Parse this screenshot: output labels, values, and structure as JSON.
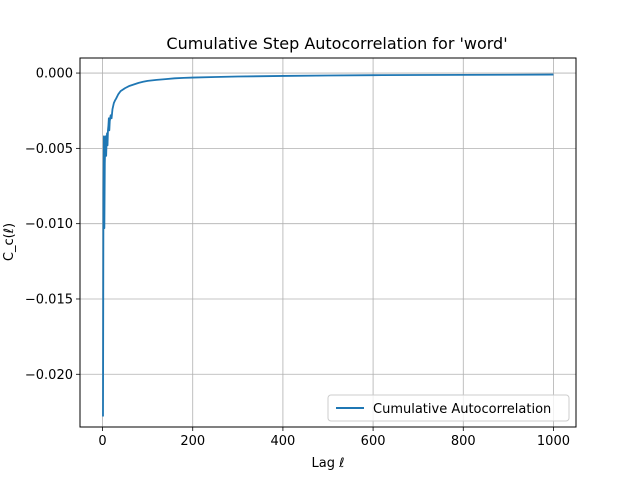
{
  "chart_data": {
    "type": "line",
    "title": "Cumulative Step Autocorrelation for 'word'",
    "xlabel": "Lag ℓ",
    "ylabel": "C_c(ℓ)",
    "xlim": [
      -50,
      1050
    ],
    "ylim": [
      -0.0235,
      0.001
    ],
    "xticks": [
      0,
      200,
      400,
      600,
      800,
      1000
    ],
    "xtick_labels": [
      "0",
      "200",
      "400",
      "600",
      "800",
      "1000"
    ],
    "yticks": [
      0.0,
      -0.005,
      -0.01,
      -0.015,
      -0.02
    ],
    "ytick_labels": [
      "0.000",
      "−0.005",
      "−0.010",
      "−0.015",
      "−0.020"
    ],
    "grid": true,
    "legend_position": "lower-right",
    "series": [
      {
        "name": "Cumulative Autocorrelation",
        "color": "#1f77b4",
        "x": [
          1,
          2,
          3,
          4,
          5,
          6,
          7,
          8,
          9,
          10,
          11,
          12,
          13,
          14,
          15,
          16,
          18,
          20,
          22,
          25,
          28,
          30,
          35,
          40,
          45,
          50,
          60,
          70,
          80,
          90,
          100,
          120,
          140,
          160,
          180,
          200,
          250,
          300,
          400,
          500,
          600,
          700,
          800,
          900,
          1000
        ],
        "y": [
          -0.0228,
          -0.008,
          -0.0042,
          -0.0103,
          -0.006,
          -0.0048,
          -0.0042,
          -0.0055,
          -0.0045,
          -0.004,
          -0.0048,
          -0.0038,
          -0.0035,
          -0.003,
          -0.0038,
          -0.0032,
          -0.0028,
          -0.003,
          -0.0024,
          -0.002,
          -0.0018,
          -0.0017,
          -0.0014,
          -0.0012,
          -0.0011,
          -0.001,
          -0.00085,
          -0.00075,
          -0.00065,
          -0.00058,
          -0.00052,
          -0.00045,
          -0.0004,
          -0.00035,
          -0.00032,
          -0.0003,
          -0.00026,
          -0.00023,
          -0.00019,
          -0.00016,
          -0.00014,
          -0.00013,
          -0.00012,
          -0.00011,
          -0.0001
        ]
      }
    ]
  }
}
